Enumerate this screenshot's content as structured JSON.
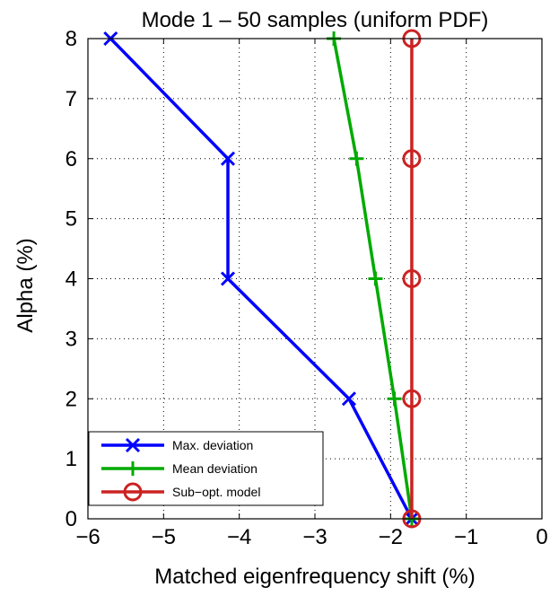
{
  "chart_data": {
    "type": "line",
    "title": "Mode 1 – 50 samples (uniform PDF)",
    "xlabel": "Matched eigenfrequency shift (%)",
    "ylabel": "Alpha (%)",
    "xlim": [
      -6,
      0
    ],
    "ylim": [
      0,
      8
    ],
    "xticks": [
      -6,
      -5,
      -4,
      -3,
      -2,
      -1,
      0
    ],
    "yticks": [
      0,
      1,
      2,
      3,
      4,
      5,
      6,
      7,
      8
    ],
    "xtick_labels": [
      "−6",
      "−5",
      "−4",
      "−3",
      "−2",
      "−1",
      "0"
    ],
    "ytick_labels": [
      "0",
      "1",
      "2",
      "3",
      "4",
      "5",
      "6",
      "7",
      "8"
    ],
    "grid": true,
    "legend_position": "bottom-left",
    "series": [
      {
        "name": "Max. deviation",
        "color": "#0000ff",
        "marker": "x",
        "points": [
          {
            "x": -1.72,
            "y": 0
          },
          {
            "x": -2.55,
            "y": 2
          },
          {
            "x": -4.15,
            "y": 4
          },
          {
            "x": -4.15,
            "y": 6
          },
          {
            "x": -5.7,
            "y": 8
          }
        ]
      },
      {
        "name": "Mean deviation",
        "color": "#00aa00",
        "marker": "+",
        "points": [
          {
            "x": -1.72,
            "y": 0
          },
          {
            "x": -1.95,
            "y": 2
          },
          {
            "x": -2.2,
            "y": 4
          },
          {
            "x": -2.45,
            "y": 6
          },
          {
            "x": -2.75,
            "y": 8
          }
        ]
      },
      {
        "name": "Sub−opt. model",
        "color": "#cc2222",
        "marker": "o",
        "points": [
          {
            "x": -1.72,
            "y": 0
          },
          {
            "x": -1.72,
            "y": 2
          },
          {
            "x": -1.72,
            "y": 4
          },
          {
            "x": -1.72,
            "y": 6
          },
          {
            "x": -1.72,
            "y": 8
          }
        ]
      }
    ]
  }
}
